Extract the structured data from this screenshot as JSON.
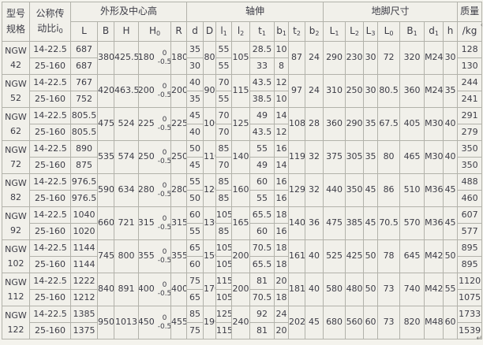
{
  "header": {
    "col_model": {
      "line1": "型号",
      "line2": "规格"
    },
    "col_ratio": {
      "line1": "公称传",
      "line2": "动比i",
      "sub": "0"
    },
    "groups": [
      {
        "label": "外形及中心高",
        "span": 5
      },
      {
        "label": "轴伸",
        "span": 8
      },
      {
        "label": "地脚尺寸",
        "span": 7
      }
    ],
    "mass": {
      "line1": "质量",
      "line2": "/kg"
    },
    "columns": [
      {
        "key": "L",
        "base": "L",
        "sub": ""
      },
      {
        "key": "B",
        "base": "B",
        "sub": ""
      },
      {
        "key": "H",
        "base": "H",
        "sub": ""
      },
      {
        "key": "H0",
        "base": "H",
        "sub": "0"
      },
      {
        "key": "R",
        "base": "R",
        "sub": ""
      },
      {
        "key": "d",
        "base": "d",
        "sub": ""
      },
      {
        "key": "D",
        "base": "D",
        "sub": ""
      },
      {
        "key": "l1",
        "base": "l",
        "sub": "1"
      },
      {
        "key": "l2",
        "base": "l",
        "sub": "2"
      },
      {
        "key": "t1",
        "base": "t",
        "sub": "1"
      },
      {
        "key": "b1",
        "base": "b",
        "sub": "1"
      },
      {
        "key": "t2",
        "base": "t",
        "sub": "2"
      },
      {
        "key": "b2",
        "base": "b",
        "sub": "2"
      },
      {
        "key": "L1",
        "base": "L",
        "sub": "1"
      },
      {
        "key": "L2",
        "base": "L",
        "sub": "2"
      },
      {
        "key": "L3",
        "base": "L",
        "sub": "3"
      },
      {
        "key": "L0",
        "base": "L",
        "sub": "0"
      },
      {
        "key": "B1",
        "base": "B",
        "sub": "1"
      },
      {
        "key": "d1",
        "base": "d",
        "sub": "1"
      },
      {
        "key": "h",
        "base": "h",
        "sub": ""
      }
    ]
  },
  "tolerance": {
    "upper": "0",
    "lower": "-0.5"
  },
  "rows": [
    {
      "model": [
        "NGW",
        "42"
      ],
      "ratios": [
        "14-22.5",
        "25-160"
      ],
      "L": [
        "687",
        "687"
      ],
      "B": "380",
      "H": "425.5",
      "H0": "180",
      "R": "180",
      "d": [
        "35",
        "30"
      ],
      "D": "80",
      "l1": [
        "55",
        "55"
      ],
      "l2": "105",
      "t1": [
        "28.5",
        "33"
      ],
      "b1": [
        "10",
        "8"
      ],
      "t2": "87",
      "b2": "24",
      "L1": "290",
      "L2": "230",
      "L3": "30",
      "L0": "72",
      "B1": "320",
      "d1": "M24",
      "h": "30",
      "kg": [
        "128",
        "130"
      ]
    },
    {
      "model": [
        "NGW",
        "52"
      ],
      "ratios": [
        "14-22.5",
        "25-160"
      ],
      "L": [
        "767",
        "752"
      ],
      "B": "420",
      "H": "463.5",
      "H0": "200",
      "R": "200",
      "d": [
        "40",
        "35"
      ],
      "D": "90",
      "l1": [
        "70",
        "55"
      ],
      "l2": "115",
      "t1": [
        "43.5",
        "38.5"
      ],
      "b1": [
        "12",
        "10"
      ],
      "t2": "97",
      "b2": "24",
      "L1": "310",
      "L2": "250",
      "L3": "30",
      "L0": "80.5",
      "B1": "360",
      "d1": "M24",
      "h": "35",
      "kg": [
        "244",
        "241"
      ]
    },
    {
      "model": [
        "NGW",
        "62"
      ],
      "ratios": [
        "14-22.5",
        "25-160"
      ],
      "L": [
        "805.5",
        "805.5"
      ],
      "B": "475",
      "H": "524",
      "H0": "225",
      "R": "225",
      "d": [
        "45",
        "40"
      ],
      "D": "100",
      "l1": [
        "70",
        "70"
      ],
      "l2": "125",
      "t1": [
        "49",
        "43.5"
      ],
      "b1": [
        "14",
        "12"
      ],
      "t2": "108",
      "b2": "28",
      "L1": "360",
      "L2": "290",
      "L3": "35",
      "L0": "67.5",
      "B1": "405",
      "d1": "M30",
      "h": "40",
      "kg": [
        "291",
        "279"
      ]
    },
    {
      "model": [
        "NGW",
        "72"
      ],
      "ratios": [
        "14-22.5",
        "25-160"
      ],
      "L": [
        "890",
        "875"
      ],
      "B": "535",
      "H": "574",
      "H0": "250",
      "R": "250",
      "d": [
        "50",
        "45"
      ],
      "D": "110",
      "l1": [
        "85",
        "70"
      ],
      "l2": "140",
      "t1": [
        "55",
        "49"
      ],
      "b1": [
        "16",
        "14"
      ],
      "t2": "119",
      "b2": "32",
      "L1": "375",
      "L2": "305",
      "L3": "35",
      "L0": "80",
      "B1": "465",
      "d1": "M30",
      "h": "40",
      "kg": [
        "350",
        "350"
      ]
    },
    {
      "model": [
        "NGW",
        "82"
      ],
      "ratios": [
        "14-22.5",
        "25-160"
      ],
      "L": [
        "976.5",
        "976.5"
      ],
      "B": "590",
      "H": "634",
      "H0": "280",
      "R": "280",
      "d": [
        "55",
        "50"
      ],
      "D": "120",
      "l1": [
        "85",
        "85"
      ],
      "l2": "160",
      "t1": [
        "60",
        "55"
      ],
      "b1": [
        "16",
        "16"
      ],
      "t2": "129",
      "b2": "32",
      "L1": "440",
      "L2": "350",
      "L3": "45",
      "L0": "86",
      "B1": "510",
      "d1": "M36",
      "h": "45",
      "kg": [
        "488",
        "460"
      ]
    },
    {
      "model": [
        "NGW",
        "92"
      ],
      "ratios": [
        "14-22.5",
        "25-160"
      ],
      "L": [
        "1040",
        "1020"
      ],
      "B": "660",
      "H": "721",
      "H0": "315",
      "R": "315",
      "d": [
        "60",
        "55"
      ],
      "D": "130",
      "l1": [
        "105",
        "85"
      ],
      "l2": "165",
      "t1": [
        "65.5",
        "60"
      ],
      "b1": [
        "18",
        "16"
      ],
      "t2": "140",
      "b2": "36",
      "L1": "475",
      "L2": "385",
      "L3": "45",
      "L0": "70.5",
      "B1": "570",
      "d1": "M36",
      "h": "45",
      "kg": [
        "607",
        "577"
      ]
    },
    {
      "model": [
        "NGW",
        "102"
      ],
      "ratios": [
        "14-22.5",
        "25-160"
      ],
      "L": [
        "1144",
        "1144"
      ],
      "B": "745",
      "H": "800",
      "H0": "355",
      "R": "355",
      "d": [
        "65",
        "60"
      ],
      "D": "150",
      "l1": [
        "105",
        "105"
      ],
      "l2": "200",
      "t1": [
        "70.5",
        "65.5"
      ],
      "b1": [
        "18",
        "18"
      ],
      "t2": "161",
      "b2": "40",
      "L1": "525",
      "L2": "425",
      "L3": "50",
      "L0": "78",
      "B1": "645",
      "d1": "M42",
      "h": "50",
      "kg": [
        "895",
        "895"
      ]
    },
    {
      "model": [
        "NGW",
        "112"
      ],
      "ratios": [
        "14-22.5",
        "25-160"
      ],
      "L": [
        "1222",
        "1212"
      ],
      "B": "840",
      "H": "891",
      "H0": "400",
      "R": "400",
      "d": [
        "75",
        "65"
      ],
      "D": "170",
      "l1": [
        "115",
        "105"
      ],
      "l2": "200",
      "t1": [
        "81",
        "70.5"
      ],
      "b1": [
        "20",
        "18"
      ],
      "t2": "181",
      "b2": "40",
      "L1": "580",
      "L2": "480",
      "L3": "50",
      "L0": "73",
      "B1": "740",
      "d1": "M42",
      "h": "55",
      "kg": [
        "1120",
        "1075"
      ]
    },
    {
      "model": [
        "NGW",
        "122"
      ],
      "ratios": [
        "14-22.5",
        "25-160"
      ],
      "L": [
        "1385",
        "1375"
      ],
      "B": "950",
      "H": "1013",
      "H0": "450",
      "R": "455",
      "d": [
        "85",
        "75"
      ],
      "D": "190",
      "l1": [
        "125",
        "115"
      ],
      "l2": "240",
      "t1": [
        "92",
        "81"
      ],
      "b1": [
        "24",
        "20"
      ],
      "t2": "202",
      "b2": "45",
      "L1": "680",
      "L2": "560",
      "L3": "60",
      "L0": "73",
      "B1": "820",
      "d1": "M48",
      "h": "60",
      "kg": [
        "1733",
        "1539"
      ]
    }
  ],
  "artifacts": {
    "bottom_right": "↵",
    "top_right": "‹"
  }
}
